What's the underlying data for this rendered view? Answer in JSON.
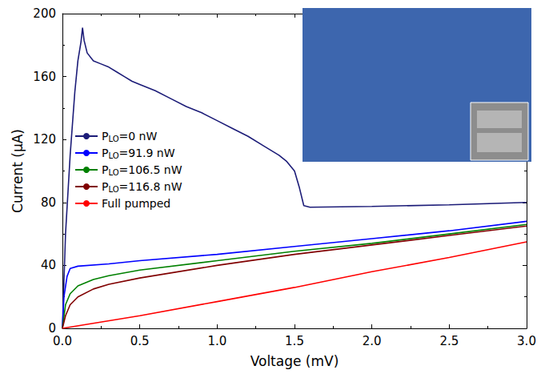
{
  "chart_data": {
    "type": "line",
    "x_label": "Voltage (mV)",
    "y_label": "Current (μA)",
    "xlim": [
      0,
      3
    ],
    "ylim": [
      0,
      200
    ],
    "xticks": [
      {
        "value": 0,
        "label": "0.0"
      },
      {
        "value": 0.5,
        "label": "0.5"
      },
      {
        "value": 1,
        "label": "1.0"
      },
      {
        "value": 1.5,
        "label": "1.5"
      },
      {
        "value": 2,
        "label": "2.0"
      },
      {
        "value": 2.5,
        "label": "2.5"
      },
      {
        "value": 3,
        "label": "3.0"
      }
    ],
    "yticks": [
      0,
      40,
      80,
      120,
      160,
      200
    ],
    "grid": false,
    "legend": "left",
    "series": [
      {
        "name": "PLO=0 nW",
        "color": "#1c1c78",
        "x": [
          0,
          0.02,
          0.05,
          0.08,
          0.1,
          0.12,
          0.13,
          0.14,
          0.16,
          0.2,
          0.25,
          0.3,
          0.35,
          0.4,
          0.45,
          0.5,
          0.6,
          0.7,
          0.8,
          0.9,
          1.0,
          1.1,
          1.2,
          1.3,
          1.4,
          1.45,
          1.5,
          1.53,
          1.56,
          1.6,
          2.0,
          2.5,
          3.0
        ],
        "values": [
          0,
          60,
          110,
          150,
          170,
          182,
          191,
          183,
          175,
          170,
          168,
          166,
          163,
          160,
          157,
          155,
          151,
          146,
          141,
          137,
          132,
          127,
          122,
          116,
          110,
          106,
          100,
          90,
          78,
          77,
          77.5,
          78.5,
          80
        ]
      },
      {
        "name": "PLO=91.9 nW",
        "color": "#0000ff",
        "x": [
          0,
          0.01,
          0.03,
          0.05,
          0.1,
          0.3,
          0.5,
          1.0,
          1.5,
          2.0,
          2.5,
          3.0
        ],
        "values": [
          0,
          20,
          33,
          38,
          39.5,
          41,
          43,
          47,
          52,
          57,
          62,
          68
        ]
      },
      {
        "name": "PLO=106.5 nW",
        "color": "#008000",
        "x": [
          0,
          0.02,
          0.05,
          0.1,
          0.2,
          0.3,
          0.5,
          1.0,
          1.5,
          2.0,
          2.5,
          3.0
        ],
        "values": [
          0,
          15,
          22,
          27,
          31,
          33.5,
          37,
          43,
          49,
          54,
          60,
          66
        ]
      },
      {
        "name": "PLO=116.8 nW",
        "color": "#800000",
        "x": [
          0,
          0.02,
          0.05,
          0.1,
          0.2,
          0.3,
          0.5,
          1.0,
          1.5,
          2.0,
          2.5,
          3.0
        ],
        "values": [
          0,
          8,
          15,
          20,
          25,
          28,
          32,
          40,
          47,
          53,
          59,
          65
        ]
      },
      {
        "name": "Full pumped",
        "color": "#ff0000",
        "x": [
          0,
          0.5,
          1.0,
          1.5,
          2.0,
          2.5,
          3.0
        ],
        "values": [
          0,
          8,
          17,
          26,
          36,
          45,
          55
        ]
      }
    ]
  }
}
